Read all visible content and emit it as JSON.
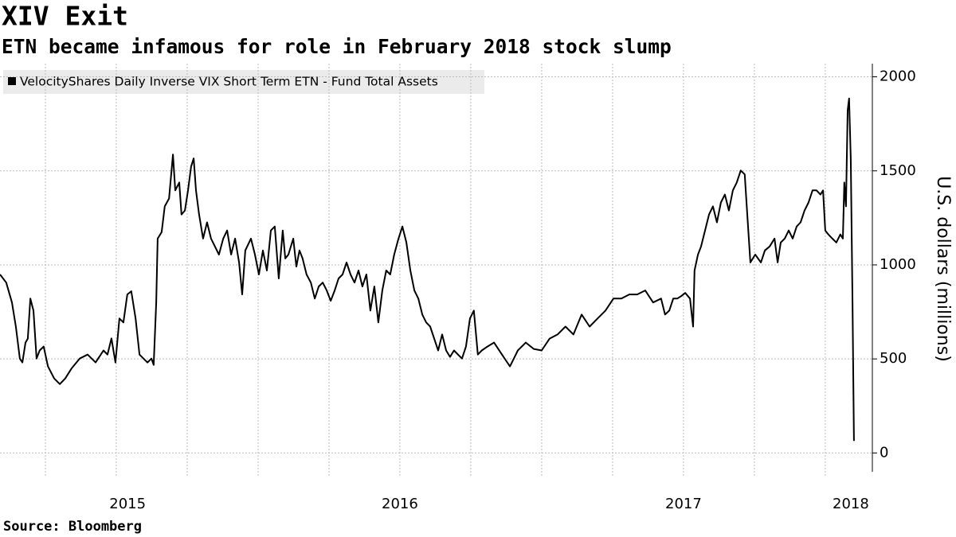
{
  "chart_data": {
    "type": "line",
    "title": "XIV Exit",
    "subtitle": "ETN became infamous for role in February 2018 stock slump",
    "source": "Source: Bloomberg",
    "y_axis_label": "U.S. dollars (millions)",
    "xlim": [
      2015.09,
      2018.166
    ],
    "ylim": [
      -100,
      2070
    ],
    "yticks": [
      0,
      500,
      1000,
      1500,
      2000
    ],
    "xticks": [
      {
        "value": 2015.54,
        "label": "2015"
      },
      {
        "value": 2016.5,
        "label": "2016"
      },
      {
        "value": 2017.5,
        "label": "2017"
      },
      {
        "value": 2018.09,
        "label": "2018"
      }
    ],
    "x_gridlines": [
      2015.25,
      2015.5,
      2015.75,
      2016.0,
      2016.25,
      2016.5,
      2016.75,
      2017.0,
      2017.25,
      2017.5,
      2017.75,
      2018.0
    ],
    "grid": true,
    "legend_position": "upper left",
    "x": [
      2015.09,
      2015.112,
      2015.132,
      2015.146,
      2015.16,
      2015.169,
      2015.18,
      2015.188,
      2015.197,
      2015.208,
      2015.219,
      2015.23,
      2015.244,
      2015.259,
      2015.281,
      2015.301,
      2015.32,
      2015.343,
      2015.371,
      2015.399,
      2015.427,
      2015.455,
      2015.469,
      2015.483,
      2015.497,
      2015.511,
      2015.525,
      2015.539,
      2015.553,
      2015.568,
      2015.582,
      2015.596,
      2015.61,
      2015.624,
      2015.632,
      2015.641,
      2015.646,
      2015.66,
      2015.671,
      2015.686,
      2015.7,
      2015.708,
      2015.722,
      2015.73,
      2015.742,
      2015.753,
      2015.764,
      2015.773,
      2015.781,
      2015.792,
      2015.806,
      2015.82,
      2015.834,
      2015.848,
      2015.862,
      2015.877,
      2015.891,
      2015.905,
      2015.919,
      2015.933,
      2015.944,
      2015.955,
      2015.975,
      2015.989,
      2016.003,
      2016.017,
      2016.031,
      2016.045,
      2016.059,
      2016.073,
      2016.087,
      2016.096,
      2016.107,
      2016.124,
      2016.135,
      2016.146,
      2016.157,
      2016.171,
      2016.186,
      2016.2,
      2016.214,
      2016.228,
      2016.242,
      2016.256,
      2016.27,
      2016.284,
      2016.298,
      2016.312,
      2016.326,
      2016.34,
      2016.354,
      2016.368,
      2016.382,
      2016.396,
      2016.41,
      2016.424,
      2016.438,
      2016.452,
      2016.466,
      2016.48,
      2016.495,
      2016.509,
      2016.523,
      2016.537,
      2016.551,
      2016.565,
      2016.579,
      2016.593,
      2016.607,
      2016.621,
      2016.635,
      2016.649,
      2016.663,
      2016.677,
      2016.691,
      2016.705,
      2016.719,
      2016.733,
      2016.747,
      2016.761,
      2016.775,
      2016.789,
      2016.809,
      2016.832,
      2016.86,
      2016.888,
      2016.902,
      2016.916,
      2016.944,
      2016.972,
      2017.0,
      2017.028,
      2017.056,
      2017.084,
      2017.112,
      2017.141,
      2017.169,
      2017.197,
      2017.225,
      2017.253,
      2017.281,
      2017.309,
      2017.337,
      2017.365,
      2017.393,
      2017.421,
      2017.435,
      2017.45,
      2017.464,
      2017.478,
      2017.492,
      2017.506,
      2017.523,
      2017.534,
      2017.539,
      2017.551,
      2017.562,
      2017.576,
      2017.59,
      2017.604,
      2017.618,
      2017.632,
      2017.646,
      2017.66,
      2017.674,
      2017.688,
      2017.702,
      2017.716,
      2017.725,
      2017.736,
      2017.753,
      2017.773,
      2017.787,
      2017.804,
      2017.821,
      2017.832,
      2017.843,
      2017.857,
      2017.871,
      2017.885,
      2017.899,
      2017.913,
      2017.927,
      2017.941,
      2017.955,
      2017.969,
      2017.983,
      2017.992,
      2018.0,
      2018.011,
      2018.025,
      2018.039,
      2018.053,
      2018.062,
      2018.067,
      2018.073,
      2018.079,
      2018.084,
      2018.09,
      2018.096,
      2018.101
    ],
    "series": [
      {
        "name": "VelocityShares Daily Inverse VIX Short Term ETN - Fund Total Assets",
        "color": "#000000",
        "values": [
          949,
          906,
          800,
          672,
          502,
          481,
          587,
          608,
          821,
          757,
          502,
          545,
          566,
          460,
          396,
          366,
          396,
          451,
          502,
          523,
          481,
          545,
          523,
          609,
          481,
          715,
          694,
          843,
          860,
          715,
          523,
          502,
          481,
          502,
          468,
          800,
          1140,
          1174,
          1311,
          1353,
          1587,
          1396,
          1438,
          1268,
          1289,
          1396,
          1523,
          1566,
          1396,
          1268,
          1140,
          1226,
          1140,
          1098,
          1055,
          1140,
          1183,
          1055,
          1140,
          1013,
          843,
          1077,
          1140,
          1055,
          949,
          1077,
          970,
          1183,
          1204,
          928,
          1183,
          1034,
          1055,
          1140,
          991,
          1077,
          1034,
          949,
          906,
          821,
          885,
          906,
          864,
          809,
          864,
          928,
          949,
          1013,
          949,
          906,
          970,
          885,
          949,
          757,
          885,
          694,
          864,
          970,
          949,
          1055,
          1140,
          1204,
          1119,
          970,
          864,
          821,
          736,
          694,
          672,
          608,
          545,
          630,
          545,
          511,
          545,
          523,
          502,
          566,
          715,
          757,
          523,
          545,
          566,
          587,
          523,
          460,
          502,
          545,
          587,
          553,
          545,
          608,
          630,
          672,
          630,
          736,
          672,
          715,
          757,
          821,
          821,
          843,
          843,
          864,
          800,
          821,
          736,
          757,
          821,
          821,
          834,
          851,
          821,
          672,
          970,
          1055,
          1098,
          1183,
          1268,
          1311,
          1226,
          1332,
          1374,
          1289,
          1396,
          1438,
          1502,
          1481,
          1268,
          1013,
          1055,
          1013,
          1077,
          1098,
          1140,
          1013,
          1119,
          1140,
          1183,
          1140,
          1204,
          1226,
          1289,
          1332,
          1396,
          1396,
          1374,
          1396,
          1183,
          1162,
          1140,
          1119,
          1162,
          1140,
          1438,
          1311,
          1821,
          1885,
          1566,
          800,
          64
        ]
      }
    ]
  }
}
